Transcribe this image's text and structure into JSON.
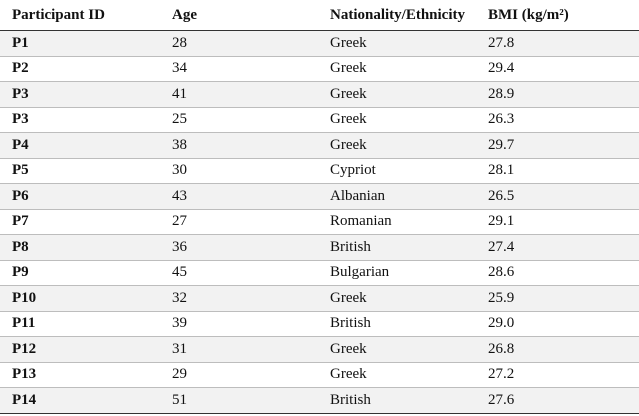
{
  "table": {
    "header": [
      "Participant ID",
      "Age",
      "Nationality/Ethnicity",
      "BMI (kg/m²)"
    ],
    "rows": [
      [
        "P1",
        "28",
        "Greek",
        "27.8"
      ],
      [
        "P2",
        "34",
        "Greek",
        "29.4"
      ],
      [
        "P3",
        "41",
        "Greek",
        "28.9"
      ],
      [
        "P3",
        "25",
        "Greek",
        "26.3"
      ],
      [
        "P4",
        "38",
        "Greek",
        "29.7"
      ],
      [
        "P5",
        "30",
        "Cypriot",
        "28.1"
      ],
      [
        "P6",
        "43",
        "Albanian",
        "26.5"
      ],
      [
        "P7",
        "27",
        "Romanian",
        "29.1"
      ],
      [
        "P8",
        "36",
        "British",
        "27.4"
      ],
      [
        "P9",
        "45",
        "Bulgarian",
        "28.6"
      ],
      [
        "P10",
        "32",
        "Greek",
        "25.9"
      ],
      [
        "P11",
        "39",
        "British",
        "29.0"
      ],
      [
        "P12",
        "31",
        "Greek",
        "26.8"
      ],
      [
        "P13",
        "29",
        "Greek",
        "27.2"
      ],
      [
        "P14",
        "51",
        "British",
        "27.6"
      ]
    ]
  }
}
